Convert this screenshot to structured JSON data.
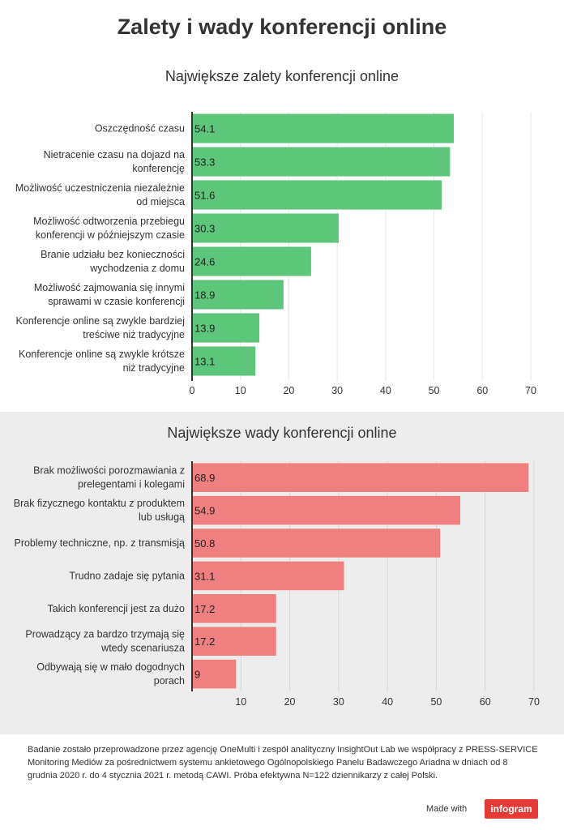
{
  "title": "Zalety i wady konferencji online",
  "footnote": "Badanie zostało przeprowadzone przez agencję OneMulti i zespół analityczny InsightOut Lab we współpracy z PRESS-SERVICE Monitoring Mediów za pośrednictwem systemu ankietowego Ogólnopolskiego Panelu Badawczego Ariadna w dniach od 8 grudnia 2020 r. do 4 stycznia 2021 r. metodą CAWI. Próba efektywna N=122 dziennikarzy z całej Polski.",
  "branding": {
    "made_with": "Made with",
    "logo_text": "infogram"
  },
  "chart_data": [
    {
      "type": "bar",
      "orientation": "horizontal",
      "title": "Największe zalety konferencji online",
      "categories": [
        "Oszczędność czasu",
        "Nietracenie czasu na dojazd na konferencję",
        "Możliwość uczestniczenia niezależnie od miejsca",
        "Możliwość odtworzenia przebiegu konferencji w późniejszym czasie",
        "Branie udziału bez konieczności wychodzenia z domu",
        "Możliwość zajmowania się innymi sprawami w czasie konferencji",
        "Konferencje online są zwykle bardziej treściwe niż tradycyjne",
        "Konferencje online są zwykle krótsze niż tradycyjne"
      ],
      "label_lines": [
        [
          "Oszczędność czasu"
        ],
        [
          "Nietracenie czasu na dojazd na",
          "konferencję"
        ],
        [
          "Możliwość uczestniczenia niezależnie",
          "od miejsca"
        ],
        [
          "Możliwość odtworzenia przebiegu",
          "konferencji w późniejszym czasie"
        ],
        [
          "Branie udziału bez konieczności",
          "wychodzenia z domu"
        ],
        [
          "Możliwość zajmowania się innymi",
          "sprawami w czasie konferencji"
        ],
        [
          "Konferencje online są zwykle bardziej",
          "treściwe niż tradycyjne"
        ],
        [
          "Konferencje online są zwykle krótsze",
          "niż tradycyjne"
        ]
      ],
      "values": [
        54.1,
        53.3,
        51.6,
        30.3,
        24.6,
        18.9,
        13.9,
        13.1
      ],
      "value_labels": [
        "54.1",
        "53.3",
        "51.6",
        "30.3",
        "24.6",
        "18.9",
        "13.9",
        "13.1"
      ],
      "xlim": [
        0,
        70
      ],
      "ticks": [
        0,
        10,
        20,
        30,
        40,
        50,
        60,
        70
      ],
      "tick_labels": [
        "0",
        "10",
        "20",
        "30",
        "40",
        "50",
        "60",
        "70"
      ],
      "color": "#5dc67a",
      "grid": true
    },
    {
      "type": "bar",
      "orientation": "horizontal",
      "title": "Największe wady konferencji online",
      "categories": [
        "Brak możliwości porozmawiania z prelegentami i kolegami",
        "Brak fizycznego kontaktu z produktem lub usługą",
        "Problemy techniczne, np. z transmisją",
        "Trudno zadaje się pytania",
        "Takich konferencji jest za dużo",
        "Prowadzący za bardzo trzymają się wtedy scenariusza",
        "Odbywają się w mało dogodnych porach"
      ],
      "label_lines": [
        [
          "Brak możliwości porozmawiania z",
          "prelegentami i kolegami"
        ],
        [
          "Brak fizycznego kontaktu z produktem",
          "lub usługą"
        ],
        [
          "Problemy techniczne, np. z transmisją"
        ],
        [
          "Trudno zadaje się pytania"
        ],
        [
          "Takich konferencji jest za dużo"
        ],
        [
          "Prowadzący za bardzo trzymają się",
          "wtedy scenariusza"
        ],
        [
          "Odbywają się w mało dogodnych",
          "porach"
        ]
      ],
      "values": [
        68.9,
        54.9,
        50.8,
        31.1,
        17.2,
        17.2,
        9
      ],
      "value_labels": [
        "68.9",
        "54.9",
        "50.8",
        "31.1",
        "17.2",
        "17.2",
        "9"
      ],
      "xlim": [
        0,
        70
      ],
      "ticks": [
        10,
        20,
        30,
        40,
        50,
        60,
        70
      ],
      "tick_labels": [
        "10",
        "20",
        "30",
        "40",
        "50",
        "60",
        "70"
      ],
      "color": "#f08080",
      "grid": true
    }
  ]
}
